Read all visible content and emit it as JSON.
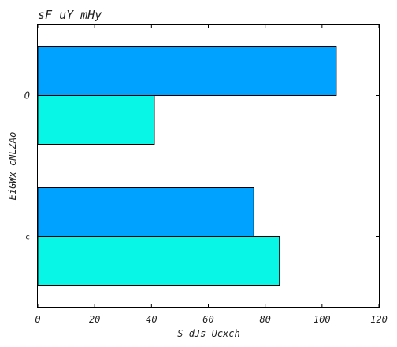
{
  "chart_data": {
    "type": "bar",
    "orientation": "horizontal",
    "title": "sF uY mHy",
    "xlabel": "S  dJs Ucxch",
    "ylabel": "EiGWx cNLZAo",
    "categories": [
      "O",
      "c"
    ],
    "series": [
      {
        "values": [
          105,
          76
        ],
        "color": "#00a2ff"
      },
      {
        "values": [
          41,
          85
        ],
        "color": "#07f6e6"
      }
    ],
    "xlim": [
      0,
      120
    ],
    "xticks": [
      0,
      20,
      40,
      60,
      80,
      100,
      120
    ],
    "grid": false,
    "legend": "none"
  }
}
